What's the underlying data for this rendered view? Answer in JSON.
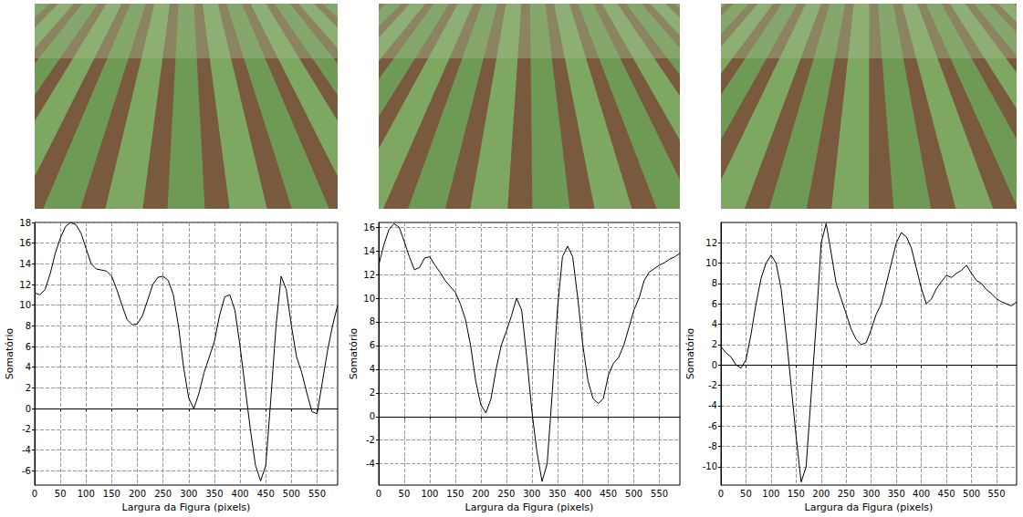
{
  "chart_data": [
    {
      "type": "line",
      "xlabel": "Largura da Figura (pixels)",
      "ylabel": "Somatório",
      "color": "#000000",
      "grid": true,
      "xlim": [
        0,
        590
      ],
      "xticks": [
        0,
        50,
        100,
        150,
        200,
        250,
        300,
        350,
        400,
        450,
        500,
        550
      ],
      "ylim": [
        -7.4,
        18
      ],
      "yticks": [
        -6,
        -4,
        -2,
        0,
        2,
        4,
        6,
        8,
        10,
        12,
        14,
        16,
        18
      ],
      "x": [
        0,
        10,
        20,
        30,
        40,
        50,
        60,
        70,
        80,
        90,
        100,
        110,
        120,
        130,
        140,
        150,
        160,
        170,
        180,
        190,
        200,
        210,
        220,
        230,
        240,
        250,
        260,
        270,
        280,
        290,
        300,
        310,
        320,
        330,
        340,
        350,
        360,
        370,
        380,
        390,
        400,
        410,
        420,
        430,
        440,
        450,
        460,
        470,
        480,
        490,
        500,
        510,
        520,
        530,
        540,
        550,
        560,
        570,
        580,
        590
      ],
      "values": [
        11.2,
        11,
        11.5,
        13,
        15,
        16.5,
        17.6,
        18,
        17.8,
        17,
        15.5,
        14,
        13.5,
        13.4,
        13.3,
        12.8,
        11.5,
        10,
        8.6,
        8.1,
        8.2,
        9,
        10.5,
        12,
        12.7,
        12.8,
        12.4,
        11,
        8,
        4,
        1,
        0,
        1.5,
        3.5,
        5,
        6.5,
        9,
        10.8,
        11,
        9.5,
        6,
        2,
        -2,
        -5.5,
        -7,
        -5.5,
        1,
        8,
        12.8,
        11.5,
        8,
        5,
        3.5,
        1.5,
        -0.3,
        -0.5,
        2.5,
        5.5,
        8,
        10
      ]
    },
    {
      "type": "line",
      "xlabel": "Largura da Figura (pixels)",
      "ylabel": "Somatório",
      "color": "#000000",
      "grid": true,
      "xlim": [
        0,
        590
      ],
      "xticks": [
        0,
        50,
        100,
        150,
        200,
        250,
        300,
        350,
        400,
        450,
        500,
        550
      ],
      "ylim": [
        -5.8,
        16.4
      ],
      "yticks": [
        -4,
        -2,
        0,
        2,
        4,
        6,
        8,
        10,
        12,
        14,
        16
      ],
      "x": [
        0,
        10,
        20,
        30,
        40,
        50,
        60,
        70,
        80,
        90,
        100,
        110,
        120,
        130,
        140,
        150,
        160,
        170,
        180,
        190,
        200,
        210,
        220,
        230,
        240,
        250,
        260,
        270,
        280,
        290,
        300,
        310,
        320,
        330,
        340,
        350,
        360,
        370,
        380,
        390,
        400,
        410,
        420,
        430,
        440,
        450,
        460,
        470,
        480,
        490,
        500,
        510,
        520,
        530,
        540,
        550,
        560,
        570,
        580,
        590
      ],
      "values": [
        12.8,
        14.5,
        15.8,
        16.3,
        16,
        14.8,
        13.5,
        12.4,
        12.6,
        13.4,
        13.5,
        12.8,
        12.2,
        11.5,
        11,
        10.5,
        9.5,
        8.2,
        6,
        3,
        1,
        0.3,
        1.5,
        4,
        6,
        7.2,
        8.5,
        10,
        9,
        5,
        0.5,
        -3,
        -5.5,
        -4,
        2,
        9,
        13.5,
        14.4,
        13.5,
        10,
        6,
        3,
        1.5,
        1.1,
        1.5,
        3.5,
        4.5,
        5,
        6,
        7.5,
        9,
        10,
        11.5,
        12.2,
        12.5,
        12.8,
        13,
        13.3,
        13.5,
        13.8
      ]
    },
    {
      "type": "line",
      "xlabel": "Largura da Figura (pixels)",
      "ylabel": "Somatório",
      "color": "#000000",
      "grid": true,
      "xlim": [
        0,
        590
      ],
      "xticks": [
        0,
        50,
        100,
        150,
        200,
        250,
        300,
        350,
        400,
        450,
        500,
        550
      ],
      "ylim": [
        -11.8,
        14
      ],
      "yticks": [
        -10,
        -8,
        -6,
        -4,
        -2,
        0,
        2,
        4,
        6,
        8,
        10,
        12
      ],
      "x": [
        0,
        10,
        20,
        30,
        40,
        50,
        60,
        70,
        80,
        90,
        100,
        110,
        120,
        130,
        140,
        150,
        160,
        170,
        180,
        190,
        200,
        210,
        220,
        230,
        240,
        250,
        260,
        270,
        280,
        290,
        300,
        310,
        320,
        330,
        340,
        350,
        360,
        370,
        380,
        390,
        400,
        410,
        420,
        430,
        440,
        450,
        460,
        470,
        480,
        490,
        500,
        510,
        520,
        530,
        540,
        550,
        560,
        570,
        580,
        590
      ],
      "values": [
        1.8,
        1.2,
        0.8,
        0,
        -0.3,
        0.5,
        3,
        6,
        8.5,
        10,
        10.8,
        10,
        7.5,
        3,
        -2,
        -7,
        -11.5,
        -10,
        -3,
        4,
        12,
        13.9,
        11,
        8,
        6.5,
        5,
        3.5,
        2.5,
        2,
        2.2,
        3.5,
        5,
        6,
        8,
        10,
        12,
        13,
        12.6,
        11.5,
        9.5,
        7.5,
        6,
        6.5,
        7.5,
        8.2,
        8.8,
        8.6,
        9,
        9.3,
        9.8,
        9,
        8.3,
        8,
        7.4,
        7,
        6.5,
        6.2,
        6,
        5.8,
        6.2
      ]
    }
  ]
}
